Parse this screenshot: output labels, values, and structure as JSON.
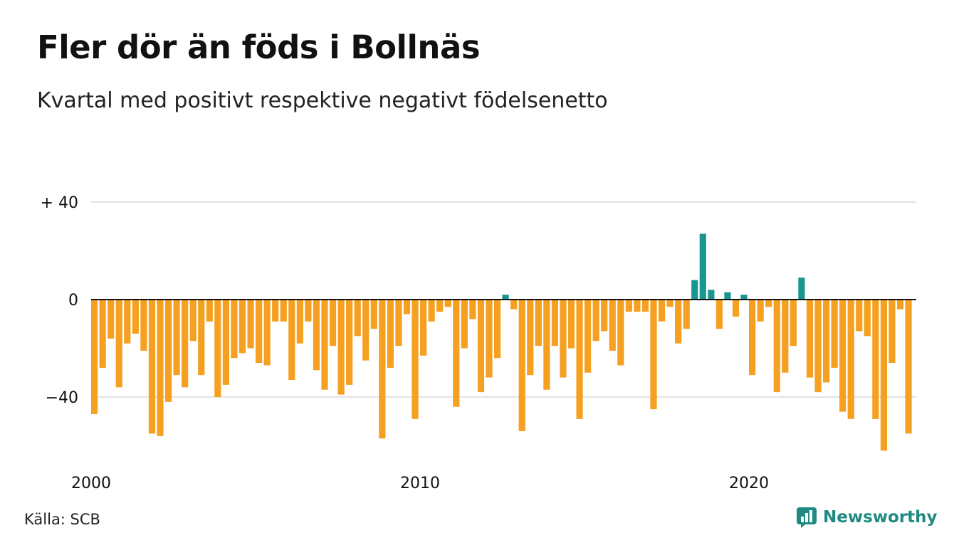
{
  "title": "Fler dör än föds i Bollnäs",
  "subtitle": "Kvartal med positivt respektive negativt födelsenetto",
  "source": "Källa: SCB",
  "brand": {
    "name": "Newsworthy",
    "icon": "newsworthy-logo-icon",
    "color": "#1f8a82"
  },
  "colors": {
    "positive": "#1a9690",
    "negative": "#f5a020",
    "grid": "#e3e3e3",
    "zero_line": "#111111"
  },
  "chart_data": {
    "type": "bar",
    "title": "Fler dör än föds i Bollnäs",
    "subtitle": "Kvartal med positivt respektive negativt födelsenetto",
    "xlabel": "",
    "ylabel": "",
    "x_start": 2000,
    "x_ticks": [
      {
        "value": 2000,
        "label": "2000"
      },
      {
        "value": 2010,
        "label": "2010"
      },
      {
        "value": 2020,
        "label": "2020"
      }
    ],
    "y_ticks": [
      {
        "value": 40,
        "label": "+ 40"
      },
      {
        "value": 0,
        "label": "0"
      },
      {
        "value": -40,
        "label": "−40"
      }
    ],
    "ylim": [
      -65,
      40
    ],
    "grid": true,
    "legend": "none",
    "values": [
      -47,
      -28,
      -16,
      -36,
      -18,
      -14,
      -21,
      -55,
      -56,
      -42,
      -31,
      -36,
      -17,
      -31,
      -9,
      -40,
      -35,
      -24,
      -22,
      -20,
      -26,
      -27,
      -9,
      -9,
      -33,
      -18,
      -9,
      -29,
      -37,
      -19,
      -39,
      -35,
      -15,
      -25,
      -12,
      -57,
      -28,
      -19,
      -6,
      -49,
      -23,
      -9,
      -5,
      -3,
      -44,
      -20,
      -8,
      -38,
      -32,
      -24,
      2,
      -4,
      -54,
      -31,
      -19,
      -37,
      -19,
      -32,
      -20,
      -49,
      -30,
      -17,
      -13,
      -21,
      -27,
      -5,
      -5,
      -5,
      -45,
      -9,
      -3,
      -18,
      -12,
      8,
      27,
      4,
      -12,
      3,
      -7,
      2,
      -31,
      -9,
      -3,
      -38,
      -30,
      -19,
      9,
      -32,
      -38,
      -34,
      -28,
      -46,
      -49,
      -13,
      -15,
      -49,
      -62,
      -26,
      -4,
      -55
    ]
  }
}
